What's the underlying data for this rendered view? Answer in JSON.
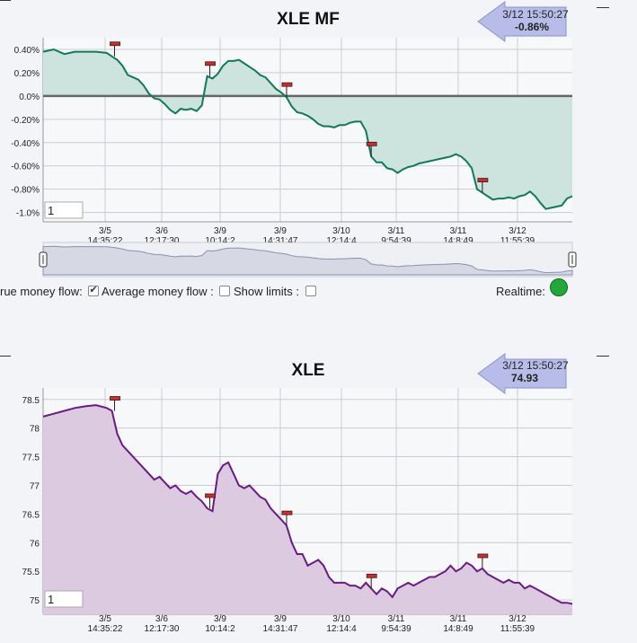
{
  "chart_data": [
    {
      "type": "area",
      "title": "XLE MF",
      "tooltip": {
        "time": "3/12 15:50:27",
        "value": "-0.86%"
      },
      "y_ticks": [
        {
          "label": "0.40%",
          "value": 0.4
        },
        {
          "label": "0.20%",
          "value": 0.2
        },
        {
          "label": "0.0%",
          "value": 0.0
        },
        {
          "label": "-0.20%",
          "value": -0.2
        },
        {
          "label": "-0.40%",
          "value": -0.4
        },
        {
          "label": "-0.60%",
          "value": -0.6
        },
        {
          "label": "-0.80%",
          "value": -0.8
        },
        {
          "label": "-1.0%",
          "value": -1.0
        }
      ],
      "x_ticks": [
        {
          "date": "3/5",
          "time": "14:35:22"
        },
        {
          "date": "3/6",
          "time": "12:17:30"
        },
        {
          "date": "3/9",
          "time": "10:14:2"
        },
        {
          "date": "3/9",
          "time": "14:31:47"
        },
        {
          "date": "3/10",
          "time": "12:14:4"
        },
        {
          "date": "3/11",
          "time": "9:54:39"
        },
        {
          "date": "3/11",
          "time": "14:8:49"
        },
        {
          "date": "3/12",
          "time": "11:55:39"
        }
      ],
      "ylim": [
        -1.08,
        0.5
      ],
      "zoom_input": "1",
      "series": [
        {
          "values": [
            [
              0,
              0.38
            ],
            [
              2,
              0.4
            ],
            [
              4,
              0.36
            ],
            [
              6,
              0.38
            ],
            [
              8,
              0.38
            ],
            [
              10,
              0.38
            ],
            [
              12,
              0.37
            ],
            [
              13,
              0.34
            ],
            [
              14,
              0.31
            ],
            [
              15,
              0.26
            ],
            [
              16,
              0.18
            ],
            [
              17,
              0.16
            ],
            [
              18,
              0.14
            ],
            [
              19,
              0.09
            ],
            [
              20,
              0.02
            ],
            [
              21,
              -0.02
            ],
            [
              22,
              -0.03
            ],
            [
              23,
              -0.07
            ],
            [
              24,
              -0.12
            ],
            [
              25,
              -0.15
            ],
            [
              26,
              -0.11
            ],
            [
              27,
              -0.12
            ],
            [
              28,
              -0.11
            ],
            [
              29,
              -0.13
            ],
            [
              30,
              -0.08
            ],
            [
              31,
              0.17
            ],
            [
              32,
              0.15
            ],
            [
              33,
              0.19
            ],
            [
              34,
              0.26
            ],
            [
              35,
              0.3
            ],
            [
              36,
              0.3
            ],
            [
              37,
              0.31
            ],
            [
              38,
              0.28
            ],
            [
              39,
              0.25
            ],
            [
              40,
              0.22
            ],
            [
              41,
              0.18
            ],
            [
              42,
              0.16
            ],
            [
              43,
              0.11
            ],
            [
              44,
              0.06
            ],
            [
              45,
              0.03
            ],
            [
              46,
              -0.01
            ],
            [
              47,
              -0.09
            ],
            [
              48,
              -0.14
            ],
            [
              49,
              -0.15
            ],
            [
              50,
              -0.17
            ],
            [
              51,
              -0.2
            ],
            [
              52,
              -0.24
            ],
            [
              53,
              -0.26
            ],
            [
              54,
              -0.26
            ],
            [
              55,
              -0.27
            ],
            [
              56,
              -0.25
            ],
            [
              57,
              -0.25
            ],
            [
              58,
              -0.23
            ],
            [
              59,
              -0.22
            ],
            [
              60,
              -0.22
            ],
            [
              61,
              -0.3
            ],
            [
              62,
              -0.52
            ],
            [
              63,
              -0.57
            ],
            [
              64,
              -0.57
            ],
            [
              65,
              -0.62
            ],
            [
              66,
              -0.63
            ],
            [
              67,
              -0.66
            ],
            [
              68,
              -0.63
            ],
            [
              69,
              -0.61
            ],
            [
              70,
              -0.6
            ],
            [
              71,
              -0.58
            ],
            [
              72,
              -0.57
            ],
            [
              73,
              -0.56
            ],
            [
              74,
              -0.55
            ],
            [
              75,
              -0.54
            ],
            [
              76,
              -0.53
            ],
            [
              77,
              -0.52
            ],
            [
              78,
              -0.5
            ],
            [
              79,
              -0.52
            ],
            [
              80,
              -0.56
            ],
            [
              81,
              -0.62
            ],
            [
              82,
              -0.8
            ],
            [
              83,
              -0.83
            ],
            [
              84,
              -0.86
            ],
            [
              85,
              -0.89
            ],
            [
              86,
              -0.88
            ],
            [
              87,
              -0.88
            ],
            [
              88,
              -0.87
            ],
            [
              89,
              -0.88
            ],
            [
              90,
              -0.86
            ],
            [
              91,
              -0.85
            ],
            [
              92,
              -0.82
            ],
            [
              93,
              -0.86
            ],
            [
              94,
              -0.92
            ],
            [
              95,
              -0.97
            ],
            [
              96,
              -0.96
            ],
            [
              97,
              -0.95
            ],
            [
              98,
              -0.94
            ],
            [
              99,
              -0.88
            ],
            [
              100,
              -0.86
            ]
          ]
        }
      ],
      "markers": [
        13.5,
        31.5,
        46,
        62,
        83
      ]
    },
    {
      "type": "area",
      "title": "XLE",
      "tooltip": {
        "time": "3/12 15:50:27",
        "value": "74.93"
      },
      "y_ticks": [
        {
          "label": "78.5",
          "value": 78.5
        },
        {
          "label": "78",
          "value": 78
        },
        {
          "label": "77.5",
          "value": 77.5
        },
        {
          "label": "77",
          "value": 77
        },
        {
          "label": "76.5",
          "value": 76.5
        },
        {
          "label": "76",
          "value": 76
        },
        {
          "label": "75.5",
          "value": 75.5
        },
        {
          "label": "75",
          "value": 75
        }
      ],
      "x_ticks": [
        {
          "date": "3/5",
          "time": "14:35:22"
        },
        {
          "date": "3/6",
          "time": "12:17:30"
        },
        {
          "date": "3/9",
          "time": "10:14:2"
        },
        {
          "date": "3/9",
          "time": "14:31:47"
        },
        {
          "date": "3/10",
          "time": "12:14:4"
        },
        {
          "date": "3/11",
          "time": "9:54:39"
        },
        {
          "date": "3/11",
          "time": "14:8:49"
        },
        {
          "date": "3/12",
          "time": "11:55:39"
        }
      ],
      "ylim": [
        74.75,
        78.7
      ],
      "zoom_input": "1",
      "series": [
        {
          "values": [
            [
              0,
              78.2
            ],
            [
              2,
              78.25
            ],
            [
              4,
              78.3
            ],
            [
              6,
              78.35
            ],
            [
              8,
              78.38
            ],
            [
              10,
              78.4
            ],
            [
              12,
              78.35
            ],
            [
              13,
              78.3
            ],
            [
              14,
              77.9
            ],
            [
              15,
              77.7
            ],
            [
              16,
              77.6
            ],
            [
              17,
              77.5
            ],
            [
              18,
              77.4
            ],
            [
              19,
              77.3
            ],
            [
              20,
              77.2
            ],
            [
              21,
              77.1
            ],
            [
              22,
              77.15
            ],
            [
              23,
              77.05
            ],
            [
              24,
              76.95
            ],
            [
              25,
              77.0
            ],
            [
              26,
              76.9
            ],
            [
              27,
              76.85
            ],
            [
              28,
              76.9
            ],
            [
              29,
              76.8
            ],
            [
              30,
              76.72
            ],
            [
              31,
              76.6
            ],
            [
              32,
              76.55
            ],
            [
              33,
              77.2
            ],
            [
              34,
              77.35
            ],
            [
              35,
              77.4
            ],
            [
              36,
              77.2
            ],
            [
              37,
              77.0
            ],
            [
              38,
              76.95
            ],
            [
              39,
              77.0
            ],
            [
              40,
              76.9
            ],
            [
              41,
              76.8
            ],
            [
              42,
              76.75
            ],
            [
              43,
              76.6
            ],
            [
              44,
              76.5
            ],
            [
              45,
              76.4
            ],
            [
              46,
              76.3
            ],
            [
              47,
              76.0
            ],
            [
              48,
              75.8
            ],
            [
              49,
              75.8
            ],
            [
              50,
              75.6
            ],
            [
              51,
              75.65
            ],
            [
              52,
              75.7
            ],
            [
              53,
              75.6
            ],
            [
              54,
              75.4
            ],
            [
              55,
              75.3
            ],
            [
              56,
              75.3
            ],
            [
              57,
              75.3
            ],
            [
              58,
              75.25
            ],
            [
              59,
              75.25
            ],
            [
              60,
              75.2
            ],
            [
              61,
              75.3
            ],
            [
              62,
              75.2
            ],
            [
              63,
              75.1
            ],
            [
              64,
              75.2
            ],
            [
              65,
              75.15
            ],
            [
              66,
              75.05
            ],
            [
              67,
              75.2
            ],
            [
              68,
              75.25
            ],
            [
              69,
              75.3
            ],
            [
              70,
              75.25
            ],
            [
              71,
              75.3
            ],
            [
              72,
              75.35
            ],
            [
              73,
              75.4
            ],
            [
              74,
              75.4
            ],
            [
              75,
              75.45
            ],
            [
              76,
              75.5
            ],
            [
              77,
              75.6
            ],
            [
              78,
              75.5
            ],
            [
              79,
              75.55
            ],
            [
              80,
              75.65
            ],
            [
              81,
              75.6
            ],
            [
              82,
              75.5
            ],
            [
              83,
              75.55
            ],
            [
              84,
              75.45
            ],
            [
              85,
              75.4
            ],
            [
              86,
              75.35
            ],
            [
              87,
              75.3
            ],
            [
              88,
              75.35
            ],
            [
              89,
              75.3
            ],
            [
              90,
              75.3
            ],
            [
              91,
              75.2
            ],
            [
              92,
              75.25
            ],
            [
              93,
              75.2
            ],
            [
              94,
              75.15
            ],
            [
              95,
              75.1
            ],
            [
              96,
              75.05
            ],
            [
              97,
              75.0
            ],
            [
              98,
              74.95
            ],
            [
              99,
              74.95
            ],
            [
              100,
              74.93
            ]
          ]
        }
      ],
      "markers": [
        13.5,
        31.5,
        46,
        62,
        83
      ]
    }
  ],
  "controls": {
    "true_mf_label": "rue money flow:",
    "avg_mf_label": "Average money flow :",
    "show_limits_label": "Show limits :",
    "realtime_label": "Realtime:"
  },
  "colors": {
    "mf_line": "#0f7a5a",
    "mf_fill": "#cde3de",
    "price_line": "#6a1a82",
    "price_fill": "#dccbe0",
    "marker": "#e32424",
    "tooltip": "#b7bde8"
  }
}
